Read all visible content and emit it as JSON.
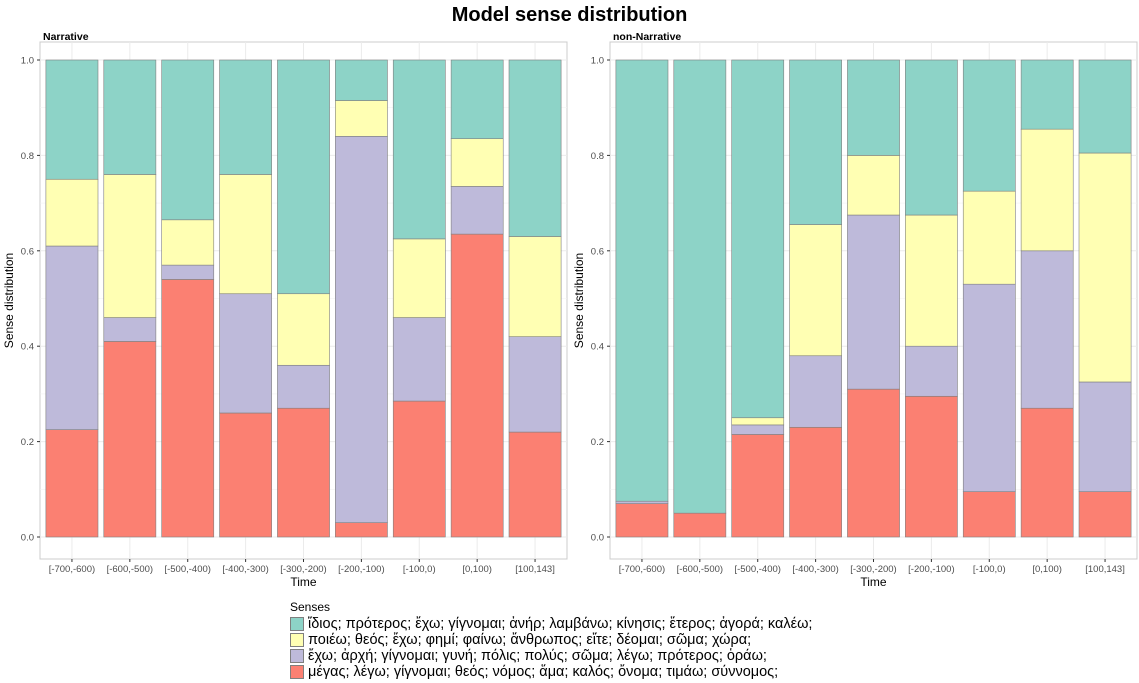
{
  "chart_data": {
    "type": "bar",
    "stacked": true,
    "title": "Model sense distribution",
    "xlabel": "Time",
    "ylabel": "Sense distribution",
    "ylim": [
      0,
      1
    ],
    "yticks": [
      "0.0",
      "0.2",
      "0.4",
      "0.6",
      "0.8",
      "1.0"
    ],
    "grid": true,
    "legend_title": "Senses",
    "legend_position": "bottom",
    "categories": [
      "[-700,-600)",
      "[-600,-500)",
      "[-500,-400)",
      "[-400,-300)",
      "[-300,-200)",
      "[-200,-100)",
      "[-100,0)",
      "[0,100)",
      "[100,143]"
    ],
    "series_meta": [
      {
        "name": "ἴδιος; πρότερος; ἔχω; γίγνομαι; ἀνήρ; λαμβάνω; κίνησις; ἕτερος; ἀγορά; καλέω;",
        "color": "#8dd3c7"
      },
      {
        "name": "ποιέω; θεός; ἔχω; φημί; φαίνω; ἄνθρωπος; εἴτε; δέομαι; σῶμα; χώρα;",
        "color": "#ffffb3"
      },
      {
        "name": "ἔχω; ἀρχή; γίγνομαι; γυνή; πόλις; πολύς; σῶμα; λέγω; πρότερος; ὁράω;",
        "color": "#bebada"
      },
      {
        "name": "μέγας; λέγω; γίγνομαι; θεός; νόμος; ἅμα; καλός; ὄνομα; τιμάω; σύννομος;",
        "color": "#fb8072"
      }
    ],
    "panels": [
      {
        "label": "Narrative",
        "series": [
          {
            "values": [
              0.25,
              0.24,
              0.335,
              0.24,
              0.49,
              0.085,
              0.375,
              0.165,
              0.37
            ]
          },
          {
            "values": [
              0.14,
              0.3,
              0.095,
              0.25,
              0.15,
              0.075,
              0.165,
              0.1,
              0.21
            ]
          },
          {
            "values": [
              0.385,
              0.05,
              0.03,
              0.25,
              0.09,
              0.81,
              0.175,
              0.1,
              0.2
            ]
          },
          {
            "values": [
              0.225,
              0.41,
              0.54,
              0.26,
              0.27,
              0.03,
              0.285,
              0.635,
              0.22
            ]
          }
        ]
      },
      {
        "label": "non-Narrative",
        "series": [
          {
            "values": [
              0.925,
              0.95,
              0.75,
              0.345,
              0.2,
              0.325,
              0.275,
              0.145,
              0.195
            ]
          },
          {
            "values": [
              0.0,
              0.0,
              0.015,
              0.275,
              0.125,
              0.275,
              0.195,
              0.255,
              0.48
            ]
          },
          {
            "values": [
              0.005,
              0.0,
              0.02,
              0.15,
              0.365,
              0.105,
              0.435,
              0.33,
              0.23
            ]
          },
          {
            "values": [
              0.07,
              0.05,
              0.215,
              0.23,
              0.31,
              0.295,
              0.095,
              0.27,
              0.095
            ]
          }
        ]
      }
    ]
  }
}
